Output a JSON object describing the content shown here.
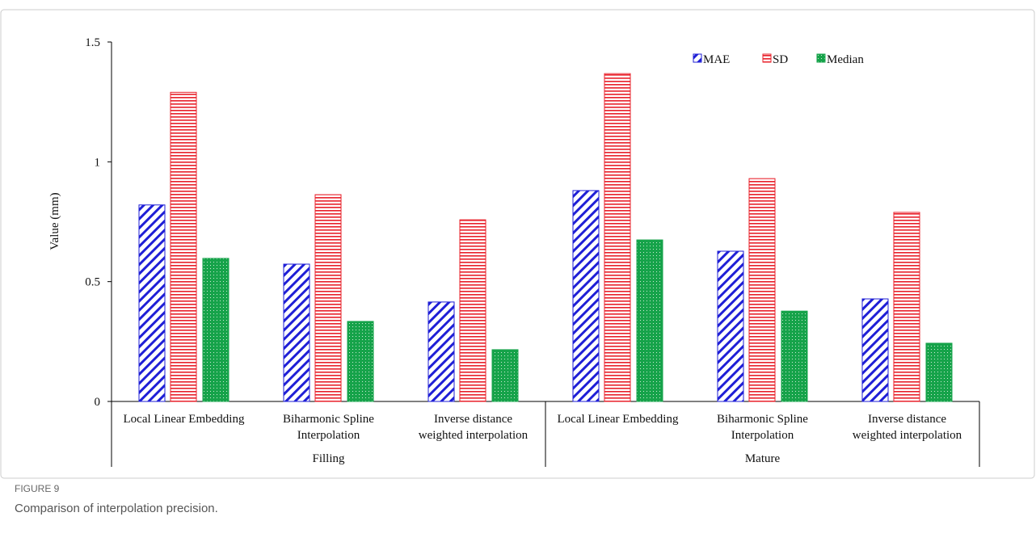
{
  "chart_data": {
    "type": "bar",
    "y_label": "Value (mm)",
    "categories": [
      [
        "Local Linear Embedding"
      ],
      [
        "Biharmonic Spline",
        "Interpolation"
      ],
      [
        "Inverse distance",
        "weighted interpolation"
      ],
      [
        "Local Linear Embedding"
      ],
      [
        "Biharmonic Spline",
        "Interpolation"
      ],
      [
        "Inverse distance",
        "weighted interpolation"
      ]
    ],
    "groups": [
      "Filling",
      "Mature"
    ],
    "series": [
      {
        "name": "MAE",
        "color": "#1f1fd6",
        "pattern": "diagonal",
        "values": [
          0.82,
          0.573,
          0.415,
          0.88,
          0.627,
          0.428
        ]
      },
      {
        "name": "SD",
        "color": "#e8202a",
        "pattern": "horizontal",
        "values": [
          1.29,
          0.863,
          0.758,
          1.368,
          0.93,
          0.789
        ]
      },
      {
        "name": "Median",
        "color": "#16a34a",
        "pattern": "dots",
        "values": [
          0.597,
          0.334,
          0.216,
          0.674,
          0.377,
          0.243
        ]
      }
    ],
    "ylim": [
      0,
      1.5
    ],
    "yticks": [
      0,
      0.5,
      1,
      1.5
    ],
    "legend": "top-right"
  },
  "figure": {
    "label": "FIGURE 9",
    "caption": "Comparison of interpolation precision."
  }
}
